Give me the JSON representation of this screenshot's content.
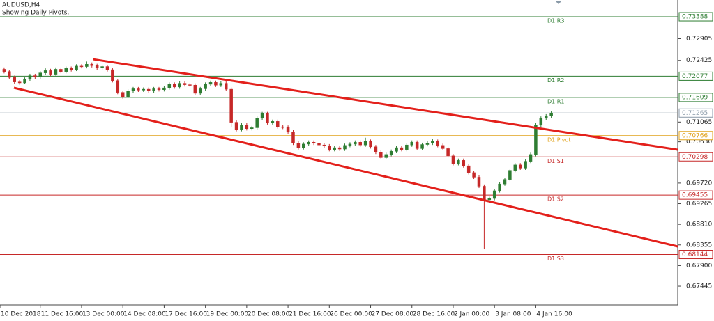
{
  "chart_data": {
    "type": "candlestick",
    "title": "AUDUSD,H4",
    "subtitle": "Showing Daily Pivots.",
    "up_color": "#2e7d32",
    "down_color": "#c62828",
    "xlim": [
      -0.8,
      130.5
    ],
    "ylim": [
      0.67031,
      0.73757
    ],
    "xticks": [
      {
        "value": -1,
        "label": "10 Dec 2018"
      },
      {
        "value": 7,
        "label": "11 Dec 16:00"
      },
      {
        "value": 15,
        "label": "13 Dec 00:00"
      },
      {
        "value": 23,
        "label": "14 Dec 08:00"
      },
      {
        "value": 31,
        "label": "17 Dec 16:00"
      },
      {
        "value": 39,
        "label": "19 Dec 00:00"
      },
      {
        "value": 47,
        "label": "20 Dec 08:00"
      },
      {
        "value": 55,
        "label": "21 Dec 16:00"
      },
      {
        "value": 63,
        "label": "26 Dec 00:00"
      },
      {
        "value": 71,
        "label": "27 Dec 08:00"
      },
      {
        "value": 79,
        "label": "28 Dec 16:00"
      },
      {
        "value": 87,
        "label": "2 Jan 00:00"
      },
      {
        "value": 95,
        "label": "3 Jan 08:00"
      },
      {
        "value": 103,
        "label": "4 Jan 16:00"
      }
    ],
    "yticks": [
      0.72905,
      0.72425,
      0.71065,
      {
        "value": 0.7063,
        "label": "0.70630"
      },
      {
        "value": 0.6972,
        "label": "0.69720"
      },
      0.69265,
      {
        "value": 0.6881,
        "label": "0.68810"
      },
      0.68355,
      {
        "value": 0.679,
        "label": "0.67900"
      },
      0.67445
    ],
    "open": [
      0.7223,
      0.7218,
      0.7205,
      0.7195,
      0.7193,
      0.7201,
      0.7209,
      0.7206,
      0.7215,
      0.722,
      0.7212,
      0.7223,
      0.7218,
      0.7225,
      0.7222,
      0.723,
      0.7229,
      0.7234,
      0.7231,
      0.7226,
      0.7229,
      0.7222,
      0.7198,
      0.7172,
      0.7162,
      0.7175,
      0.718,
      0.7177,
      0.7179,
      0.7175,
      0.718,
      0.7178,
      0.7182,
      0.719,
      0.7184,
      0.7192,
      0.7189,
      0.7188,
      0.717,
      0.718,
      0.719,
      0.7194,
      0.7188,
      0.7192,
      0.7179,
      0.7106,
      0.709,
      0.71,
      0.7092,
      0.7094,
      0.7115,
      0.7125,
      0.7105,
      0.7108,
      0.7096,
      0.7095,
      0.7085,
      0.706,
      0.705,
      0.7058,
      0.7062,
      0.706,
      0.7056,
      0.7054,
      0.7046,
      0.705,
      0.7047,
      0.7055,
      0.7058,
      0.7062,
      0.7056,
      0.7064,
      0.7052,
      0.704,
      0.7028,
      0.7035,
      0.7042,
      0.705,
      0.7046,
      0.7056,
      0.7062,
      0.7048,
      0.7057,
      0.706,
      0.7064,
      0.7055,
      0.7048,
      0.7032,
      0.7015,
      0.7022,
      0.701,
      0.6995,
      0.6985,
      0.6965,
      0.6935,
      0.6938,
      0.6955,
      0.697,
      0.698,
      0.7,
      0.7012,
      0.7005,
      0.702,
      0.7035,
      0.71,
      0.7115,
      0.712
    ],
    "high": [
      0.7227,
      0.7222,
      0.7209,
      0.7199,
      0.7205,
      0.7213,
      0.7213,
      0.7219,
      0.7225,
      0.7224,
      0.7227,
      0.7227,
      0.7229,
      0.7229,
      0.7234,
      0.7234,
      0.724,
      0.7238,
      0.7235,
      0.7233,
      0.7233,
      0.7226,
      0.7202,
      0.7176,
      0.7179,
      0.7184,
      0.7184,
      0.7183,
      0.7183,
      0.7184,
      0.7184,
      0.7186,
      0.7194,
      0.7194,
      0.7196,
      0.7196,
      0.7193,
      0.7192,
      0.7184,
      0.7194,
      0.7198,
      0.7198,
      0.7196,
      0.7196,
      0.7183,
      0.711,
      0.7104,
      0.7104,
      0.7098,
      0.7119,
      0.7129,
      0.7129,
      0.7112,
      0.7112,
      0.71,
      0.7099,
      0.7089,
      0.7064,
      0.7062,
      0.7066,
      0.7066,
      0.7064,
      0.706,
      0.7058,
      0.7054,
      0.7054,
      0.7059,
      0.7062,
      0.7066,
      0.7066,
      0.7072,
      0.7068,
      0.7056,
      0.7044,
      0.7039,
      0.7046,
      0.7054,
      0.7054,
      0.706,
      0.7066,
      0.7066,
      0.7061,
      0.7064,
      0.707,
      0.7068,
      0.7059,
      0.7052,
      0.7036,
      0.7026,
      0.7026,
      0.7014,
      0.6999,
      0.6989,
      0.6969,
      0.6942,
      0.6959,
      0.6974,
      0.6984,
      0.7004,
      0.7016,
      0.7016,
      0.7024,
      0.7039,
      0.7104,
      0.7119,
      0.7124,
      0.713
    ],
    "low": [
      0.7214,
      0.7201,
      0.719,
      0.7189,
      0.719,
      0.7197,
      0.7202,
      0.7202,
      0.7211,
      0.7208,
      0.7209,
      0.7214,
      0.7214,
      0.7218,
      0.7219,
      0.7225,
      0.7225,
      0.7227,
      0.7222,
      0.7222,
      0.7218,
      0.7194,
      0.7168,
      0.7158,
      0.7159,
      0.7171,
      0.7173,
      0.7173,
      0.7171,
      0.7171,
      0.7174,
      0.7174,
      0.7178,
      0.718,
      0.718,
      0.7185,
      0.7184,
      0.7166,
      0.7166,
      0.7176,
      0.7186,
      0.7184,
      0.7184,
      0.7175,
      0.7095,
      0.7086,
      0.7086,
      0.7088,
      0.7088,
      0.709,
      0.7111,
      0.7101,
      0.7101,
      0.7092,
      0.7091,
      0.7081,
      0.7056,
      0.7046,
      0.7046,
      0.7054,
      0.7056,
      0.7052,
      0.705,
      0.7042,
      0.7042,
      0.7043,
      0.7043,
      0.7051,
      0.7054,
      0.7052,
      0.7052,
      0.7048,
      0.7036,
      0.7024,
      0.7024,
      0.7031,
      0.7038,
      0.7042,
      0.7042,
      0.7052,
      0.7044,
      0.7044,
      0.7053,
      0.7056,
      0.7051,
      0.7044,
      0.7028,
      0.7011,
      0.7011,
      0.7006,
      0.6991,
      0.6981,
      0.6961,
      0.68259,
      0.6931,
      0.6934,
      0.6951,
      0.6966,
      0.6976,
      0.6996,
      0.7001,
      0.7001,
      0.7016,
      0.7031,
      0.7096,
      0.7111,
      0.7116
    ],
    "close": [
      0.7218,
      0.7205,
      0.7195,
      0.7193,
      0.7201,
      0.7209,
      0.7206,
      0.7215,
      0.722,
      0.7212,
      0.7223,
      0.7218,
      0.7225,
      0.7222,
      0.723,
      0.7229,
      0.7234,
      0.7231,
      0.7226,
      0.7229,
      0.7222,
      0.7198,
      0.7172,
      0.7162,
      0.7175,
      0.718,
      0.7177,
      0.7179,
      0.7175,
      0.718,
      0.7178,
      0.7182,
      0.719,
      0.7184,
      0.7192,
      0.7189,
      0.7188,
      0.717,
      0.718,
      0.719,
      0.7194,
      0.7188,
      0.7192,
      0.7179,
      0.7106,
      0.709,
      0.71,
      0.7092,
      0.7094,
      0.7115,
      0.7125,
      0.7105,
      0.7108,
      0.7096,
      0.7095,
      0.7085,
      0.706,
      0.705,
      0.7058,
      0.7062,
      0.706,
      0.7056,
      0.7054,
      0.7046,
      0.705,
      0.7047,
      0.7055,
      0.7058,
      0.7062,
      0.7056,
      0.7064,
      0.7052,
      0.704,
      0.7028,
      0.7035,
      0.7042,
      0.705,
      0.7046,
      0.7056,
      0.7062,
      0.7048,
      0.7057,
      0.706,
      0.7064,
      0.7055,
      0.7048,
      0.7032,
      0.7015,
      0.7022,
      0.701,
      0.6995,
      0.6985,
      0.6965,
      0.6935,
      0.6938,
      0.6955,
      0.697,
      0.698,
      0.7,
      0.7012,
      0.7005,
      0.702,
      0.7035,
      0.71,
      0.7115,
      0.712,
      0.71265
    ],
    "levels": [
      {
        "name": "D1 R3",
        "value": 0.73388,
        "color": "#2e7d32"
      },
      {
        "name": "D1 R2",
        "value": 0.72077,
        "color": "#2e7d32"
      },
      {
        "name": "D1 R1",
        "value": 0.71609,
        "color": "#2e7d32"
      },
      {
        "name": "D1 Pivot",
        "value": 0.70766,
        "color": "#e0a21a"
      },
      {
        "name": "D1 S1",
        "value": 0.70298,
        "color": "#c62828"
      },
      {
        "name": "D1 S2",
        "value": 0.69455,
        "color": "#c62828"
      },
      {
        "name": "D1 S3",
        "value": 0.68144,
        "color": "#c62828"
      }
    ],
    "current_price": {
      "value": 0.71265,
      "color": "#8a9aa8"
    },
    "trendlines": [
      {
        "x": [
          17.2,
          130.5
        ],
        "y": [
          0.72451,
          0.70455
        ],
        "color": "#e3201b"
      },
      {
        "x": [
          1.9,
          130.5
        ],
        "y": [
          0.71822,
          0.68321
        ],
        "color": "#e3201b"
      }
    ]
  }
}
